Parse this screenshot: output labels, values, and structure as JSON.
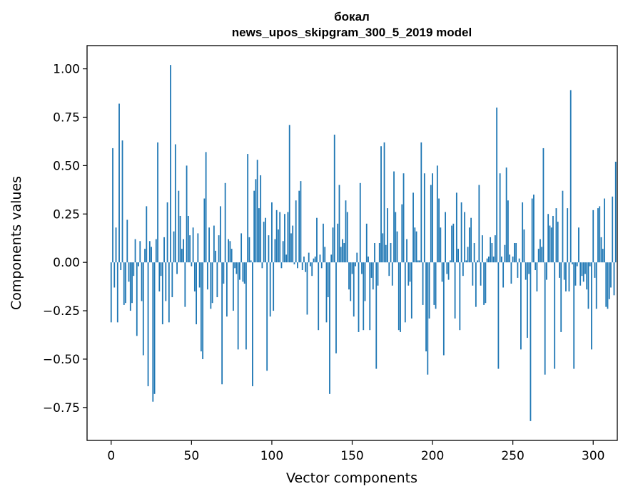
{
  "chart_data": {
    "type": "bar",
    "title": "бокал",
    "subtitle": "news_upos_skipgram_300_5_2019 model",
    "xlabel": "Vector components",
    "ylabel": "Components values",
    "xlim": [
      -15,
      315
    ],
    "ylim": [
      -0.92,
      1.12
    ],
    "xticks": [
      0,
      50,
      100,
      150,
      200,
      250,
      300
    ],
    "yticks": [
      -0.75,
      -0.5,
      -0.25,
      0.0,
      0.25,
      0.5,
      0.75,
      1.0
    ],
    "xtick_labels": [
      "0",
      "50",
      "100",
      "150",
      "200",
      "250",
      "300"
    ],
    "ytick_labels": [
      "−0.75",
      "−0.50",
      "−0.25",
      "0.00",
      "0.25",
      "0.50",
      "0.75",
      "1.00"
    ],
    "bar_color": "#1f77b4",
    "grid": false,
    "values": [
      -0.31,
      0.59,
      -0.13,
      0.18,
      -0.31,
      0.82,
      -0.04,
      0.63,
      -0.22,
      -0.21,
      0.22,
      -0.1,
      -0.25,
      -0.21,
      -0.07,
      0.12,
      -0.38,
      -0.02,
      0.11,
      -0.2,
      -0.48,
      0.07,
      0.29,
      -0.64,
      0.11,
      0.08,
      -0.72,
      -0.68,
      0.12,
      0.62,
      -0.15,
      -0.07,
      -0.32,
      0.13,
      -0.2,
      0.31,
      -0.31,
      1.02,
      -0.18,
      0.16,
      0.61,
      -0.06,
      0.37,
      0.24,
      0.07,
      0.12,
      -0.23,
      0.5,
      0.24,
      0.14,
      -0.02,
      0.18,
      -0.15,
      -0.32,
      0.15,
      -0.13,
      -0.46,
      -0.5,
      0.33,
      0.57,
      -0.14,
      0.18,
      -0.24,
      -0.21,
      0.19,
      0.06,
      -0.18,
      0.14,
      0.29,
      -0.63,
      -0.11,
      0.41,
      -0.28,
      0.12,
      0.11,
      0.07,
      -0.25,
      -0.03,
      -0.06,
      -0.45,
      -0.09,
      0.15,
      -0.1,
      -0.11,
      -0.45,
      0.56,
      0.13,
      0.01,
      -0.64,
      0.37,
      0.43,
      0.53,
      0.28,
      0.45,
      -0.03,
      0.21,
      0.23,
      -0.56,
      0.14,
      -0.28,
      0.31,
      -0.25,
      0.12,
      0.27,
      0.17,
      0.26,
      -0.03,
      0.11,
      0.25,
      0.04,
      0.26,
      0.71,
      0.15,
      0.19,
      -0.01,
      0.32,
      -0.03,
      0.37,
      0.42,
      -0.04,
      0.03,
      -0.05,
      -0.27,
      0.05,
      -0.02,
      -0.07,
      0.02,
      0.03,
      0.23,
      -0.35,
      0.04,
      -0.03,
      0.2,
      0.08,
      -0.31,
      -0.18,
      -0.68,
      0.04,
      0.18,
      0.66,
      -0.47,
      0.2,
      0.4,
      0.08,
      0.12,
      0.1,
      0.32,
      0.26,
      -0.14,
      -0.2,
      -0.06,
      -0.28,
      -0.02,
      0.05,
      -0.36,
      0.41,
      -0.06,
      -0.35,
      -0.2,
      0.2,
      0.03,
      -0.35,
      -0.08,
      -0.14,
      0.1,
      -0.55,
      -0.12,
      0.1,
      0.6,
      0.15,
      0.62,
      0.09,
      0.28,
      -0.07,
      0.1,
      -0.12,
      0.47,
      0.26,
      0.16,
      -0.35,
      -0.36,
      0.3,
      0.46,
      -0.31,
      0.12,
      -0.12,
      -0.1,
      -0.29,
      0.36,
      0.18,
      0.16,
      0.01,
      0.01,
      0.62,
      -0.22,
      0.46,
      -0.46,
      -0.58,
      -0.29,
      0.4,
      0.46,
      -0.22,
      -0.24,
      0.5,
      0.33,
      0.18,
      -0.1,
      -0.48,
      0.26,
      -0.06,
      -0.09,
      0.01,
      0.19,
      0.2,
      -0.29,
      0.36,
      0.07,
      -0.35,
      0.31,
      -0.07,
      0.26,
      0.01,
      0.08,
      0.18,
      0.23,
      -0.12,
      0.1,
      -0.23,
      0.01,
      0.4,
      -0.12,
      0.14,
      -0.22,
      -0.21,
      0.02,
      0.03,
      0.13,
      0.1,
      0.03,
      0.14,
      0.8,
      -0.55,
      0.46,
      0.03,
      -0.13,
      0.09,
      0.49,
      0.32,
      0.04,
      -0.11,
      0.03,
      0.1,
      0.1,
      -0.08,
      0.02,
      -0.45,
      0.31,
      0.17,
      -0.09,
      -0.39,
      -0.06,
      -0.82,
      0.33,
      0.35,
      -0.04,
      -0.15,
      0.07,
      0.12,
      0.08,
      0.59,
      -0.58,
      -0.09,
      0.25,
      0.19,
      0.18,
      0.24,
      -0.55,
      0.28,
      0.21,
      -0.08,
      -0.36,
      0.37,
      -0.09,
      -0.15,
      0.28,
      -0.15,
      0.89,
      -0.01,
      -0.55,
      -0.12,
      -0.02,
      0.18,
      -0.12,
      -0.07,
      -0.1,
      -0.06,
      -0.14,
      -0.24,
      -0.02,
      -0.45,
      0.27,
      -0.08,
      -0.24,
      0.28,
      0.29,
      0.13,
      0.07,
      0.33,
      -0.23,
      -0.24,
      -0.19,
      -0.13,
      0.34,
      -0.17,
      0.52
    ]
  }
}
